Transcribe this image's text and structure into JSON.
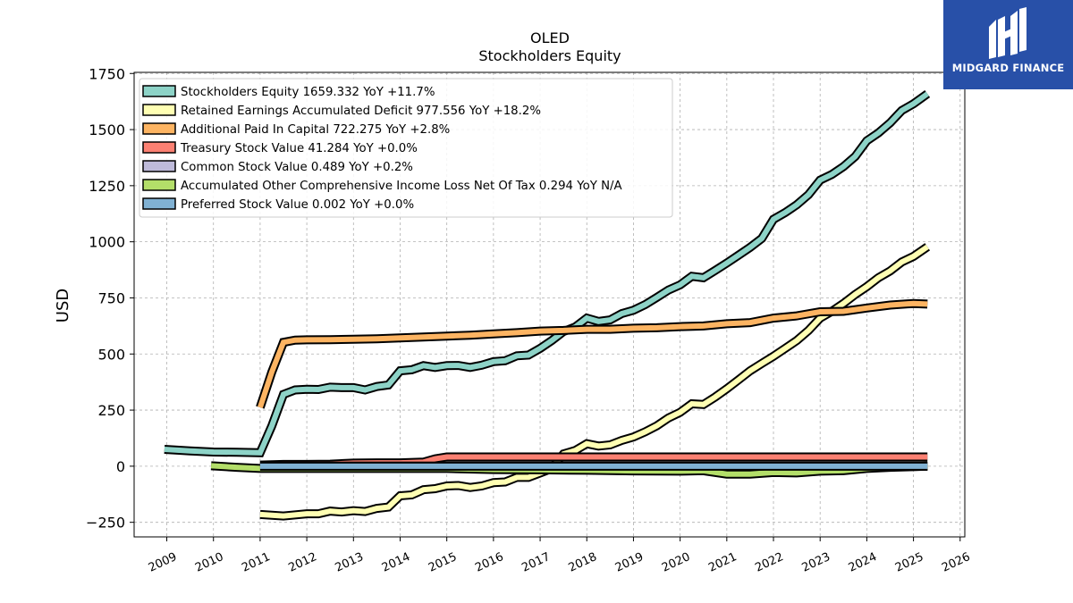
{
  "branding": {
    "name": "MIDGARD FINANCE",
    "logo_icon": "midgard-logo-icon",
    "color": "#2850a8"
  },
  "chart_data": {
    "type": "line",
    "title": "OLED",
    "subtitle": "Stockholders  Equity",
    "xlabel": "",
    "ylabel": "USD",
    "xlim": [
      2008.3,
      2026.1
    ],
    "ylim": [
      -315,
      1755
    ],
    "x_ticks": [
      "2009",
      "2010",
      "2011",
      "2012",
      "2013",
      "2014",
      "2015",
      "2016",
      "2017",
      "2018",
      "2019",
      "2020",
      "2021",
      "2022",
      "2023",
      "2024",
      "2025",
      "2026"
    ],
    "y_ticks": [
      -250,
      0,
      250,
      500,
      750,
      1000,
      1250,
      1500,
      1750
    ],
    "y_tick_labels": [
      "−250",
      "0",
      "250",
      "500",
      "750",
      "1000",
      "1250",
      "1500",
      "1750"
    ],
    "grid": true,
    "legend_position": "top-left",
    "series": [
      {
        "name": "Stockholders Equity",
        "legend": "Stockholders Equity  1659.332 YoY +11.7%",
        "color": "#8dd3c7",
        "points": [
          [
            2008.95,
            75
          ],
          [
            2009.5,
            68
          ],
          [
            2010,
            63
          ],
          [
            2010.5,
            62
          ],
          [
            2011,
            60
          ],
          [
            2011.25,
            180
          ],
          [
            2011.5,
            320
          ],
          [
            2011.75,
            340
          ],
          [
            2012,
            343
          ],
          [
            2012.25,
            342
          ],
          [
            2012.5,
            352
          ],
          [
            2012.75,
            350
          ],
          [
            2013,
            350
          ],
          [
            2013.25,
            340
          ],
          [
            2013.5,
            355
          ],
          [
            2013.75,
            362
          ],
          [
            2014,
            425
          ],
          [
            2014.25,
            430
          ],
          [
            2014.5,
            448
          ],
          [
            2014.75,
            440
          ],
          [
            2015,
            448
          ],
          [
            2015.25,
            449
          ],
          [
            2015.5,
            440
          ],
          [
            2015.75,
            450
          ],
          [
            2016,
            466
          ],
          [
            2016.25,
            470
          ],
          [
            2016.5,
            492
          ],
          [
            2016.75,
            495
          ],
          [
            2017,
            525
          ],
          [
            2017.25,
            560
          ],
          [
            2017.5,
            600
          ],
          [
            2017.75,
            620
          ],
          [
            2018,
            660
          ],
          [
            2018.25,
            645
          ],
          [
            2018.5,
            652
          ],
          [
            2018.75,
            680
          ],
          [
            2019,
            695
          ],
          [
            2019.25,
            720
          ],
          [
            2019.5,
            752
          ],
          [
            2019.75,
            785
          ],
          [
            2020,
            808
          ],
          [
            2020.25,
            846
          ],
          [
            2020.5,
            840
          ],
          [
            2020.75,
            872
          ],
          [
            2021,
            905
          ],
          [
            2021.25,
            940
          ],
          [
            2021.5,
            975
          ],
          [
            2021.75,
            1015
          ],
          [
            2022,
            1100
          ],
          [
            2022.25,
            1130
          ],
          [
            2022.5,
            1165
          ],
          [
            2022.75,
            1210
          ],
          [
            2023,
            1275
          ],
          [
            2023.25,
            1300
          ],
          [
            2023.5,
            1335
          ],
          [
            2023.75,
            1380
          ],
          [
            2024,
            1450
          ],
          [
            2024.25,
            1485
          ],
          [
            2024.5,
            1530
          ],
          [
            2024.75,
            1585
          ],
          [
            2025,
            1615
          ],
          [
            2025.3,
            1659.332
          ]
        ]
      },
      {
        "name": "Retained Earnings Accumulated Deficit",
        "legend": "Retained Earnings Accumulated Deficit  977.556 YoY +18.2%",
        "color": "#ffffb3",
        "points": [
          [
            2011,
            -215
          ],
          [
            2011.5,
            -222
          ],
          [
            2012,
            -212
          ],
          [
            2012.25,
            -212
          ],
          [
            2012.5,
            -200
          ],
          [
            2012.75,
            -204
          ],
          [
            2013,
            -198
          ],
          [
            2013.25,
            -202
          ],
          [
            2013.5,
            -188
          ],
          [
            2013.75,
            -182
          ],
          [
            2014,
            -132
          ],
          [
            2014.25,
            -128
          ],
          [
            2014.5,
            -105
          ],
          [
            2014.75,
            -100
          ],
          [
            2015,
            -88
          ],
          [
            2015.25,
            -86
          ],
          [
            2015.5,
            -95
          ],
          [
            2015.75,
            -88
          ],
          [
            2016,
            -73
          ],
          [
            2016.25,
            -70
          ],
          [
            2016.5,
            -50
          ],
          [
            2016.75,
            -50
          ],
          [
            2017,
            -30
          ],
          [
            2017.25,
            -10
          ],
          [
            2017.5,
            55
          ],
          [
            2017.75,
            70
          ],
          [
            2018,
            100
          ],
          [
            2018.25,
            90
          ],
          [
            2018.5,
            95
          ],
          [
            2018.75,
            115
          ],
          [
            2019,
            130
          ],
          [
            2019.25,
            153
          ],
          [
            2019.5,
            180
          ],
          [
            2019.75,
            215
          ],
          [
            2020,
            240
          ],
          [
            2020.25,
            278
          ],
          [
            2020.5,
            275
          ],
          [
            2020.75,
            308
          ],
          [
            2021,
            345
          ],
          [
            2021.25,
            385
          ],
          [
            2021.5,
            425
          ],
          [
            2021.75,
            458
          ],
          [
            2022,
            490
          ],
          [
            2022.25,
            525
          ],
          [
            2022.5,
            560
          ],
          [
            2022.75,
            605
          ],
          [
            2023,
            660
          ],
          [
            2023.25,
            690
          ],
          [
            2023.5,
            725
          ],
          [
            2023.75,
            765
          ],
          [
            2024,
            800
          ],
          [
            2024.25,
            840
          ],
          [
            2024.5,
            870
          ],
          [
            2024.75,
            910
          ],
          [
            2025,
            935
          ],
          [
            2025.3,
            977.556
          ]
        ]
      },
      {
        "name": "Additional Paid In Capital",
        "legend": "Additional Paid In Capital  722.275 YoY +2.8%",
        "color": "#fdb462",
        "points": [
          [
            2011,
            262
          ],
          [
            2011.25,
            420
          ],
          [
            2011.5,
            552
          ],
          [
            2011.75,
            562
          ],
          [
            2012,
            563
          ],
          [
            2012.5,
            564
          ],
          [
            2013,
            566
          ],
          [
            2013.5,
            568
          ],
          [
            2014,
            572
          ],
          [
            2014.5,
            576
          ],
          [
            2015,
            580
          ],
          [
            2015.5,
            584
          ],
          [
            2016,
            590
          ],
          [
            2016.5,
            595
          ],
          [
            2017,
            602
          ],
          [
            2017.5,
            605
          ],
          [
            2018,
            610
          ],
          [
            2018.5,
            610
          ],
          [
            2019,
            615
          ],
          [
            2019.5,
            617
          ],
          [
            2020,
            622
          ],
          [
            2020.5,
            625
          ],
          [
            2021,
            635
          ],
          [
            2021.5,
            640
          ],
          [
            2022,
            660
          ],
          [
            2022.5,
            670
          ],
          [
            2023,
            688
          ],
          [
            2023.5,
            690
          ],
          [
            2024,
            705
          ],
          [
            2024.5,
            718
          ],
          [
            2025,
            725
          ],
          [
            2025.3,
            722.275
          ]
        ]
      },
      {
        "name": "Treasury Stock Value",
        "legend": "Treasury Stock Value  41.284 YoY +0.0%",
        "color": "#fb8072",
        "points": [
          [
            2011,
            5
          ],
          [
            2011.5,
            8
          ],
          [
            2012,
            8
          ],
          [
            2012.5,
            9
          ],
          [
            2013,
            14
          ],
          [
            2013.5,
            15
          ],
          [
            2014,
            15
          ],
          [
            2014.5,
            18
          ],
          [
            2014.75,
            33
          ],
          [
            2015,
            41.284
          ],
          [
            2025.3,
            41.284
          ]
        ]
      },
      {
        "name": "Common Stock Value",
        "legend": "Common Stock Value  0.489 YoY +0.2%",
        "color": "#bebada",
        "points": [
          [
            2011,
            0.47
          ],
          [
            2025.3,
            0.489
          ]
        ]
      },
      {
        "name": "Accumulated Other Comprehensive Income Loss Net Of Tax",
        "legend": "Accumulated Other Comprehensive Income Loss Net Of Tax  0.294 YoY N/A",
        "color": "#b3de69",
        "points": [
          [
            2009.95,
            2
          ],
          [
            2010.5,
            -5
          ],
          [
            2011,
            -10
          ],
          [
            2012,
            -10
          ],
          [
            2013,
            -10
          ],
          [
            2014,
            -10
          ],
          [
            2015,
            -10
          ],
          [
            2016,
            -15
          ],
          [
            2017,
            -16
          ],
          [
            2018,
            -18
          ],
          [
            2019,
            -21
          ],
          [
            2020,
            -22
          ],
          [
            2020.5,
            -20
          ],
          [
            2021,
            -35
          ],
          [
            2021.5,
            -35
          ],
          [
            2022,
            -28
          ],
          [
            2022.5,
            -30
          ],
          [
            2023,
            -22
          ],
          [
            2023.5,
            -20
          ],
          [
            2024,
            -10
          ],
          [
            2024.5,
            -5
          ],
          [
            2025,
            -2
          ],
          [
            2025.3,
            0.294
          ]
        ]
      },
      {
        "name": "Preferred Stock Value",
        "legend": "Preferred Stock Value  0.002 YoY +0.0%",
        "color": "#80b1d3",
        "points": [
          [
            2011,
            0.002
          ],
          [
            2025.3,
            0.002
          ]
        ]
      }
    ]
  }
}
